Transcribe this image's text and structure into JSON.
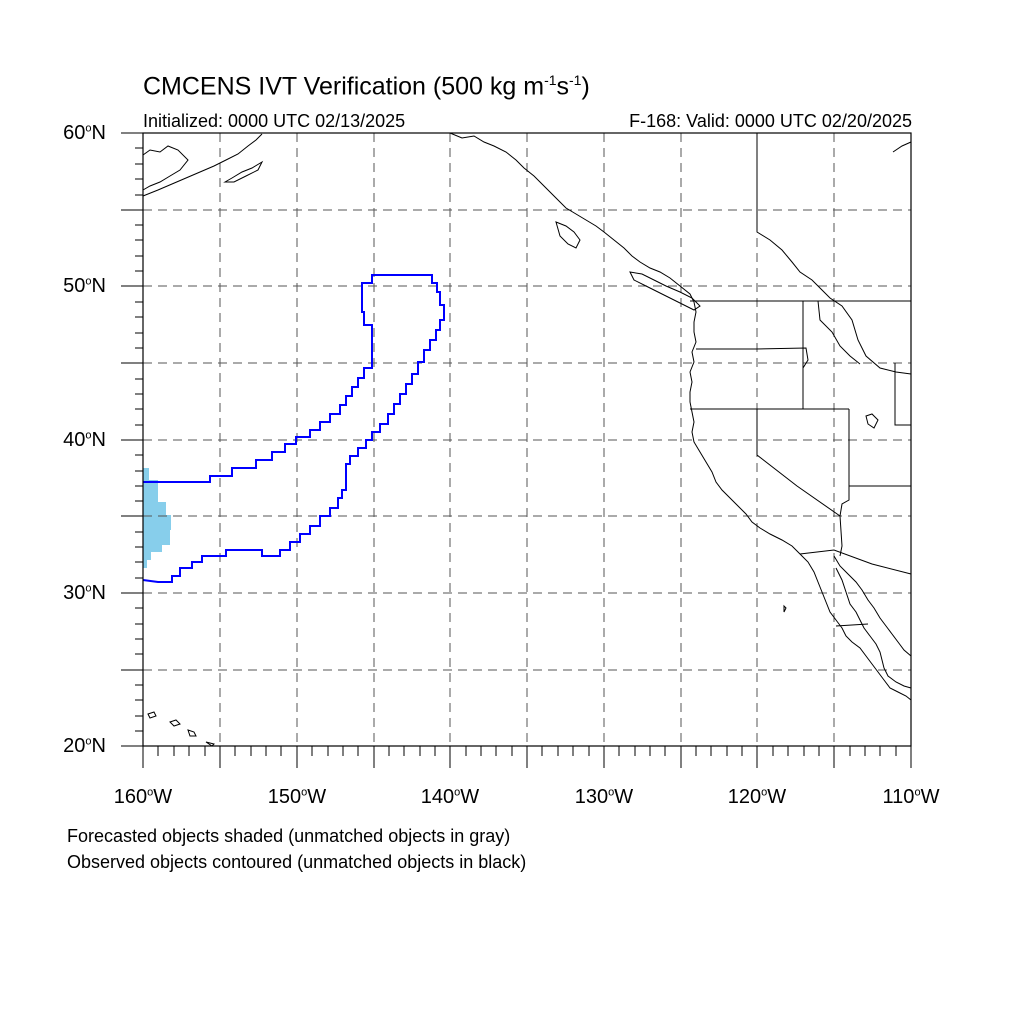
{
  "title": {
    "main": "CMCENS IVT Verification (500 kg m",
    "exp1": "-1",
    "mid": "s",
    "exp2": "-1",
    "end": ")"
  },
  "initialized": "Initialized: 0000 UTC 02/13/2025",
  "valid": "F-168: Valid: 0000 UTC 02/20/2025",
  "lat_labels": [
    {
      "num": "60",
      "deg": "o",
      "dir": "N"
    },
    {
      "num": "50",
      "deg": "o",
      "dir": "N"
    },
    {
      "num": "40",
      "deg": "o",
      "dir": "N"
    },
    {
      "num": "30",
      "deg": "o",
      "dir": "N"
    },
    {
      "num": "20",
      "deg": "o",
      "dir": "N"
    }
  ],
  "lon_labels": [
    {
      "num": "160",
      "deg": "o",
      "dir": "W"
    },
    {
      "num": "150",
      "deg": "o",
      "dir": "W"
    },
    {
      "num": "140",
      "deg": "o",
      "dir": "W"
    },
    {
      "num": "130",
      "deg": "o",
      "dir": "W"
    },
    {
      "num": "120",
      "deg": "o",
      "dir": "W"
    },
    {
      "num": "110",
      "deg": "o",
      "dir": "W"
    }
  ],
  "notes": {
    "forecast": "Forecasted objects shaded (unmatched objects in gray)",
    "observed": "Observed objects contoured (unmatched objects in black)"
  },
  "colors": {
    "forecast_fill": "#87ceeb",
    "observed_contour": "#0000ff",
    "coastline": "#000000",
    "grid": "#555555"
  },
  "map_extent": {
    "lon_min": -160,
    "lon_max": -110,
    "lat_min": 20,
    "lat_max": 60
  }
}
